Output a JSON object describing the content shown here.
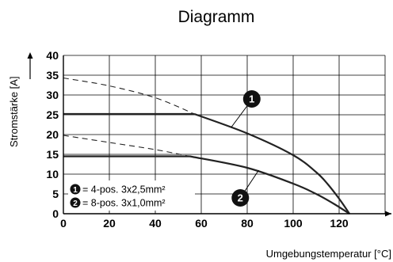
{
  "chart_data": {
    "type": "line",
    "title": "Diagramm",
    "xlabel": "Umgebungstemperatur [°C]",
    "ylabel": "Stromstärke [A]",
    "xlim": [
      0,
      140
    ],
    "ylim": [
      0,
      40
    ],
    "x_ticks": [
      "0",
      "20",
      "40",
      "60",
      "80",
      "100",
      "120"
    ],
    "y_ticks": [
      "0",
      "5",
      "10",
      "15",
      "20",
      "25",
      "30",
      "35",
      "40"
    ],
    "grid": true,
    "series": [
      {
        "marker": "1",
        "label": "= 4-pos. 3x2,5mm²",
        "color": "#222222",
        "dashed_points": [
          [
            0,
            34.3
          ],
          [
            20,
            32.3
          ],
          [
            40,
            29.3
          ],
          [
            57,
            25.2
          ]
        ],
        "flat": [
          [
            0,
            25.2
          ],
          [
            57,
            25.2
          ]
        ],
        "points": [
          [
            57,
            25.2
          ],
          [
            80,
            20.3
          ],
          [
            100,
            14.8
          ],
          [
            110,
            10.5
          ],
          [
            115,
            7.5
          ],
          [
            120,
            3.8
          ],
          [
            124.5,
            0
          ]
        ]
      },
      {
        "marker": "2",
        "label": "= 8-pos. 3x1,0mm²",
        "color": "#222222",
        "dashed_points": [
          [
            0,
            19.8
          ],
          [
            20,
            18.0
          ],
          [
            40,
            16.2
          ],
          [
            55,
            14.5
          ]
        ],
        "flat": [
          [
            0,
            14.5
          ],
          [
            55,
            14.5
          ]
        ],
        "points": [
          [
            55,
            14.5
          ],
          [
            80,
            11.6
          ],
          [
            100,
            7.6
          ],
          [
            110,
            5.0
          ],
          [
            118,
            2.4
          ],
          [
            124.5,
            0
          ]
        ]
      }
    ],
    "legend": {
      "position": "bottom-left",
      "entries": [
        "= 4-pos. 3x2,5mm²",
        "= 8-pos. 3x1,0mm²"
      ]
    },
    "annotations": [
      {
        "text": "1",
        "x": 82,
        "y": 29,
        "target": [
          73,
          21.8
        ]
      },
      {
        "text": "2",
        "x": 77,
        "y": 4,
        "target": [
          85,
          11.0
        ]
      }
    ]
  }
}
